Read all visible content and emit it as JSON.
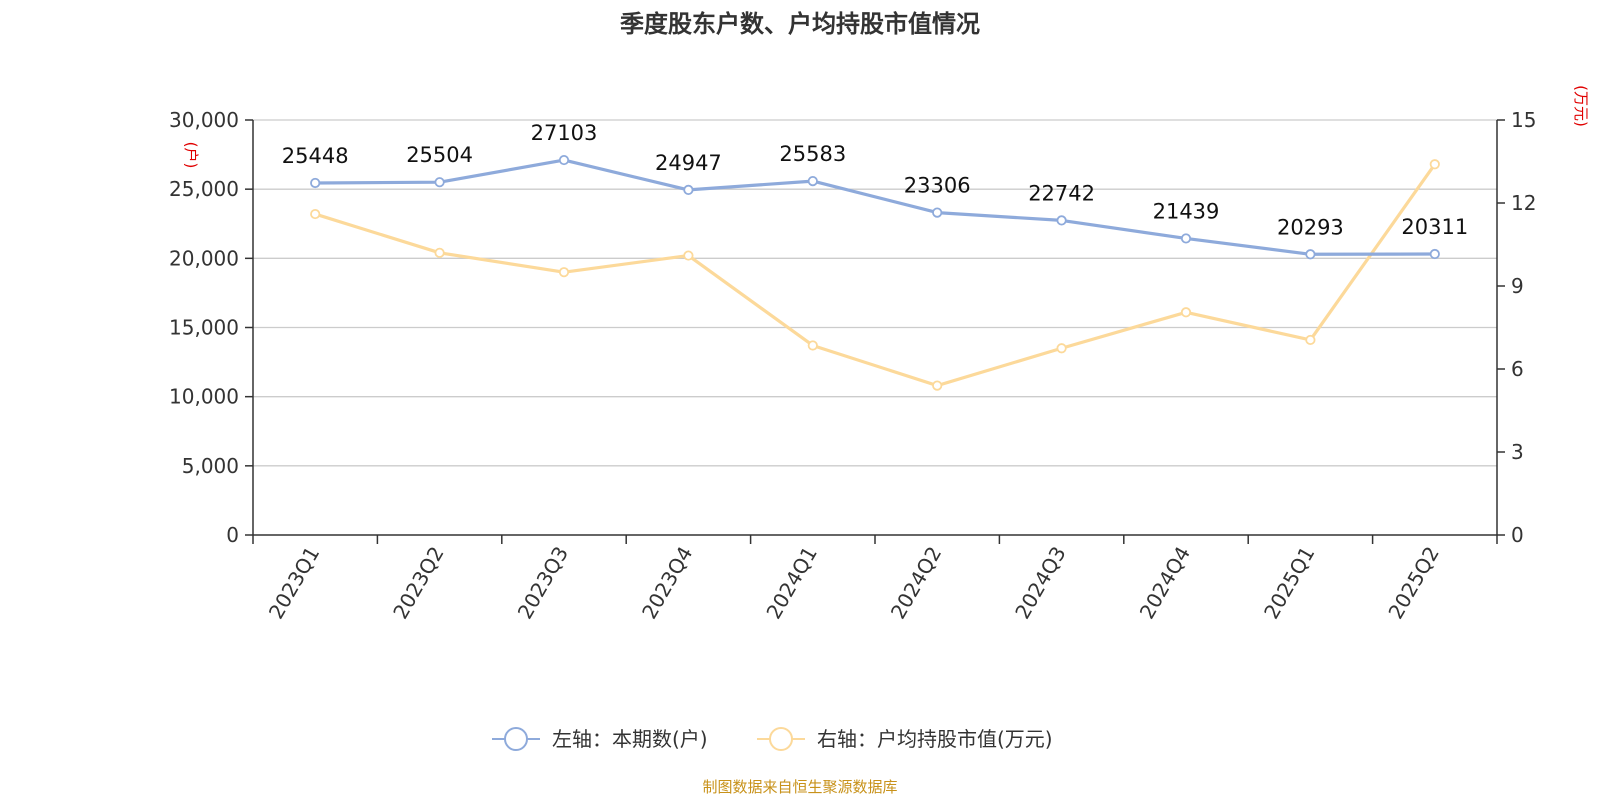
{
  "title": "季度股东户数、户均持股市值情况",
  "source": "制图数据来自恒生聚源数据库",
  "colors": {
    "left_series": "#8eaadb",
    "right_series": "#fcd99a",
    "unit_label": "#e00000",
    "source": "#c8921a",
    "grid": "#cccccc"
  },
  "chart_data": {
    "type": "line",
    "title": "季度股东户数、户均持股市值情况",
    "categories": [
      "2023Q1",
      "2023Q2",
      "2023Q3",
      "2023Q4",
      "2024Q1",
      "2024Q2",
      "2024Q3",
      "2024Q4",
      "2025Q1",
      "2025Q2"
    ],
    "y_left": {
      "unit": "(户)",
      "ylim": [
        0,
        30000
      ],
      "ticks": [
        0,
        5000,
        10000,
        15000,
        20000,
        25000,
        30000
      ],
      "tick_labels": [
        "0",
        "5,000",
        "10,000",
        "15,000",
        "20,000",
        "25,000",
        "30,000"
      ]
    },
    "y_right": {
      "unit": "(万元)",
      "ylim": [
        0,
        15
      ],
      "ticks": [
        0,
        3,
        6,
        9,
        12,
        15
      ],
      "tick_labels": [
        "0",
        "3",
        "6",
        "9",
        "12",
        "15"
      ]
    },
    "series": [
      {
        "name": "左轴：本期数(户)",
        "axis": "left",
        "values": [
          25448,
          25504,
          27103,
          24947,
          25583,
          23306,
          22742,
          21439,
          20293,
          20311
        ],
        "labels": [
          "25448",
          "25504",
          "27103",
          "24947",
          "25583",
          "23306",
          "22742",
          "21439",
          "20293",
          "20311"
        ]
      },
      {
        "name": "右轴：户均持股市值(万元)",
        "axis": "right",
        "values": [
          11.6,
          10.2,
          9.5,
          10.1,
          6.85,
          5.4,
          6.75,
          8.05,
          7.05,
          13.4
        ]
      }
    ],
    "grid": true,
    "legend_position": "bottom"
  }
}
